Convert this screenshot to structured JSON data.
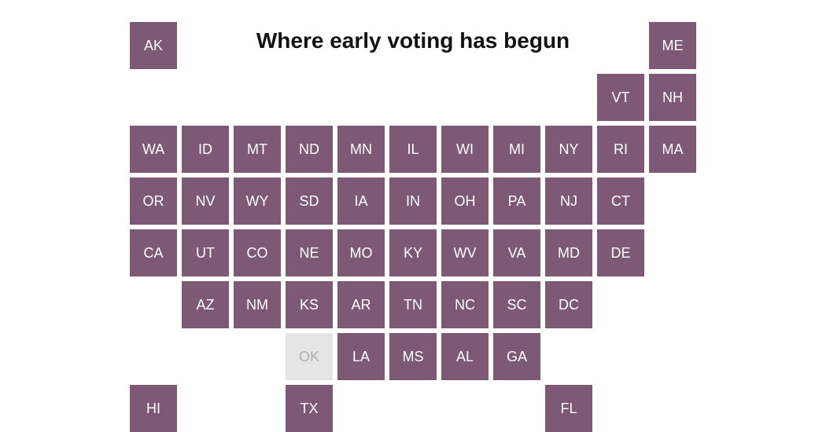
{
  "title": "Where early voting has begun",
  "cartogram": {
    "type": "grid-map",
    "cell_size": 60,
    "gap": 6,
    "cols": 11,
    "rows": 8,
    "colors": {
      "active_bg": "#7d5976",
      "active_text": "#ffffff",
      "inactive_bg": "#e5e5e5",
      "inactive_text": "#b0b0b0",
      "page_bg": "#ffffff",
      "title_color": "#121212"
    },
    "title_fontsize": 28,
    "label_fontsize": 18,
    "cells": [
      {
        "label": "AK",
        "col": 0,
        "row": 0,
        "status": "active"
      },
      {
        "label": "ME",
        "col": 10,
        "row": 0,
        "status": "active"
      },
      {
        "label": "VT",
        "col": 9,
        "row": 1,
        "status": "active"
      },
      {
        "label": "NH",
        "col": 10,
        "row": 1,
        "status": "active"
      },
      {
        "label": "WA",
        "col": 0,
        "row": 2,
        "status": "active"
      },
      {
        "label": "ID",
        "col": 1,
        "row": 2,
        "status": "active"
      },
      {
        "label": "MT",
        "col": 2,
        "row": 2,
        "status": "active"
      },
      {
        "label": "ND",
        "col": 3,
        "row": 2,
        "status": "active"
      },
      {
        "label": "MN",
        "col": 4,
        "row": 2,
        "status": "active"
      },
      {
        "label": "IL",
        "col": 5,
        "row": 2,
        "status": "active"
      },
      {
        "label": "WI",
        "col": 6,
        "row": 2,
        "status": "active"
      },
      {
        "label": "MI",
        "col": 7,
        "row": 2,
        "status": "active"
      },
      {
        "label": "NY",
        "col": 8,
        "row": 2,
        "status": "active"
      },
      {
        "label": "RI",
        "col": 9,
        "row": 2,
        "status": "active"
      },
      {
        "label": "MA",
        "col": 10,
        "row": 2,
        "status": "active"
      },
      {
        "label": "OR",
        "col": 0,
        "row": 3,
        "status": "active"
      },
      {
        "label": "NV",
        "col": 1,
        "row": 3,
        "status": "active"
      },
      {
        "label": "WY",
        "col": 2,
        "row": 3,
        "status": "active"
      },
      {
        "label": "SD",
        "col": 3,
        "row": 3,
        "status": "active"
      },
      {
        "label": "IA",
        "col": 4,
        "row": 3,
        "status": "active"
      },
      {
        "label": "IN",
        "col": 5,
        "row": 3,
        "status": "active"
      },
      {
        "label": "OH",
        "col": 6,
        "row": 3,
        "status": "active"
      },
      {
        "label": "PA",
        "col": 7,
        "row": 3,
        "status": "active"
      },
      {
        "label": "NJ",
        "col": 8,
        "row": 3,
        "status": "active"
      },
      {
        "label": "CT",
        "col": 9,
        "row": 3,
        "status": "active"
      },
      {
        "label": "CA",
        "col": 0,
        "row": 4,
        "status": "active"
      },
      {
        "label": "UT",
        "col": 1,
        "row": 4,
        "status": "active"
      },
      {
        "label": "CO",
        "col": 2,
        "row": 4,
        "status": "active"
      },
      {
        "label": "NE",
        "col": 3,
        "row": 4,
        "status": "active"
      },
      {
        "label": "MO",
        "col": 4,
        "row": 4,
        "status": "active"
      },
      {
        "label": "KY",
        "col": 5,
        "row": 4,
        "status": "active"
      },
      {
        "label": "WV",
        "col": 6,
        "row": 4,
        "status": "active"
      },
      {
        "label": "VA",
        "col": 7,
        "row": 4,
        "status": "active"
      },
      {
        "label": "MD",
        "col": 8,
        "row": 4,
        "status": "active"
      },
      {
        "label": "DE",
        "col": 9,
        "row": 4,
        "status": "active"
      },
      {
        "label": "AZ",
        "col": 1,
        "row": 5,
        "status": "active"
      },
      {
        "label": "NM",
        "col": 2,
        "row": 5,
        "status": "active"
      },
      {
        "label": "KS",
        "col": 3,
        "row": 5,
        "status": "active"
      },
      {
        "label": "AR",
        "col": 4,
        "row": 5,
        "status": "active"
      },
      {
        "label": "TN",
        "col": 5,
        "row": 5,
        "status": "active"
      },
      {
        "label": "NC",
        "col": 6,
        "row": 5,
        "status": "active"
      },
      {
        "label": "SC",
        "col": 7,
        "row": 5,
        "status": "active"
      },
      {
        "label": "DC",
        "col": 8,
        "row": 5,
        "status": "active"
      },
      {
        "label": "OK",
        "col": 3,
        "row": 6,
        "status": "inactive"
      },
      {
        "label": "LA",
        "col": 4,
        "row": 6,
        "status": "active"
      },
      {
        "label": "MS",
        "col": 5,
        "row": 6,
        "status": "active"
      },
      {
        "label": "AL",
        "col": 6,
        "row": 6,
        "status": "active"
      },
      {
        "label": "GA",
        "col": 7,
        "row": 6,
        "status": "active"
      },
      {
        "label": "HI",
        "col": 0,
        "row": 7,
        "status": "active"
      },
      {
        "label": "TX",
        "col": 3,
        "row": 7,
        "status": "active"
      },
      {
        "label": "FL",
        "col": 8,
        "row": 7,
        "status": "active"
      }
    ]
  }
}
